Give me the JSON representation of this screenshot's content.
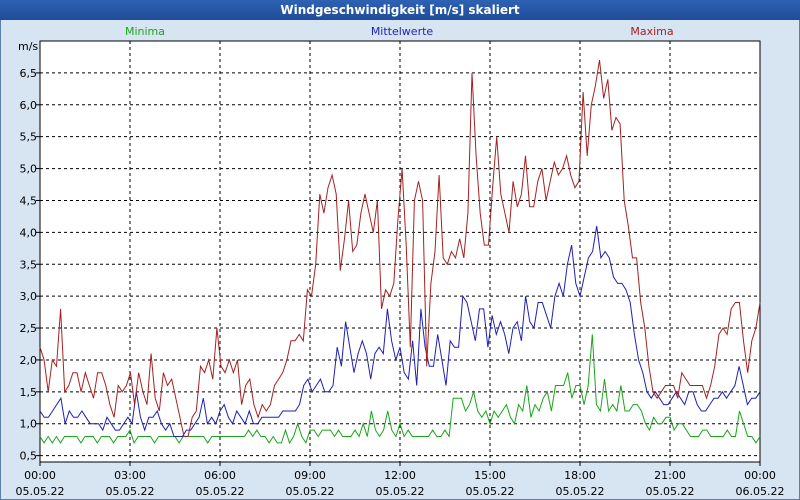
{
  "window": {
    "title": "Windgeschwindigkeit [m/s] skaliert"
  },
  "chart_data": {
    "type": "line",
    "title": "Windgeschwindigkeit [m/s] skaliert",
    "ylabel": "m/s",
    "ylim": [
      0.4,
      7.0
    ],
    "yticks": [
      0.5,
      1.0,
      1.5,
      2.0,
      2.5,
      3.0,
      3.5,
      4.0,
      4.5,
      5.0,
      5.5,
      6.0,
      6.5
    ],
    "ytick_labels": [
      "0,5",
      "1,0",
      "1,5",
      "2,0",
      "2,5",
      "3,0",
      "3,5",
      "4,0",
      "4,5",
      "5,0",
      "5,5",
      "6,0",
      "6,5"
    ],
    "xlim_hours": [
      0,
      24
    ],
    "xticks": [
      {
        "time": "00:00",
        "date": "05.05.22"
      },
      {
        "time": "03:00",
        "date": "05.05.22"
      },
      {
        "time": "06:00",
        "date": "05.05.22"
      },
      {
        "time": "09:00",
        "date": "05.05.22"
      },
      {
        "time": "12:00",
        "date": "05.05.22"
      },
      {
        "time": "15:00",
        "date": "05.05.22"
      },
      {
        "time": "18:00",
        "date": "05.05.22"
      },
      {
        "time": "21:00",
        "date": "05.05.22"
      },
      {
        "time": "00:00",
        "date": "06.05.22"
      }
    ],
    "grid": true,
    "legend_position": "top",
    "series": [
      {
        "name": "Minima",
        "color": "#1aa51a",
        "values": [
          0.8,
          0.7,
          0.8,
          0.7,
          0.8,
          0.7,
          0.8,
          0.8,
          0.8,
          0.8,
          0.7,
          0.8,
          0.8,
          0.8,
          0.7,
          0.8,
          0.8,
          0.8,
          0.7,
          0.8,
          0.8,
          0.8,
          0.9,
          0.7,
          0.8,
          0.8,
          0.8,
          0.8,
          0.7,
          0.8,
          0.8,
          0.8,
          0.8,
          0.8,
          0.7,
          0.8,
          0.8,
          0.8,
          0.8,
          0.8,
          0.8,
          0.7,
          0.8,
          0.8,
          0.8,
          0.8,
          0.8,
          0.8,
          0.8,
          0.8,
          0.8,
          0.9,
          0.8,
          0.9,
          0.8,
          0.8,
          0.7,
          0.8,
          0.7,
          0.7,
          0.9,
          0.7,
          0.8,
          1.0,
          0.8,
          0.7,
          0.9,
          0.9,
          0.8,
          0.9,
          0.9,
          0.9,
          0.8,
          0.9,
          0.8,
          0.8,
          0.8,
          0.9,
          0.8,
          1.0,
          0.8,
          1.2,
          0.9,
          0.8,
          0.9,
          1.2,
          0.9,
          0.8,
          1.0,
          0.8,
          0.9,
          0.8,
          0.8,
          0.8,
          0.8,
          0.8,
          0.9,
          0.8,
          0.8,
          0.9,
          0.8,
          1.4,
          1.4,
          1.4,
          1.2,
          1.3,
          1.5,
          1.2,
          1.1,
          1.2,
          1.0,
          1.2,
          1.1,
          1.2,
          1.3,
          1.1,
          1.0,
          1.3,
          1.2,
          1.6,
          1.1,
          1.3,
          1.2,
          1.4,
          1.5,
          1.2,
          1.6,
          1.6,
          1.6,
          1.8,
          1.4,
          1.6,
          1.6,
          1.3,
          1.6,
          2.4,
          1.3,
          1.2,
          1.7,
          1.2,
          1.3,
          1.2,
          1.6,
          1.2,
          1.2,
          1.3,
          1.3,
          1.2,
          1.0,
          0.9,
          1.1,
          1.0,
          1.0,
          1.1,
          1.1,
          0.9,
          1.0,
          1.0,
          0.9,
          0.8,
          0.8,
          0.8,
          0.9,
          0.9,
          0.8,
          0.8,
          0.8,
          0.8,
          0.9,
          0.8,
          0.8,
          1.2,
          1.0,
          0.8,
          0.8,
          0.7,
          0.8
        ]
      },
      {
        "name": "Mittelwerte",
        "color": "#1f1fb3",
        "values": [
          1.2,
          1.1,
          1.1,
          1.2,
          1.3,
          1.4,
          1.0,
          1.2,
          1.1,
          1.1,
          1.2,
          1.1,
          1.0,
          1.0,
          1.0,
          0.9,
          1.1,
          1.0,
          0.9,
          0.9,
          1.0,
          1.1,
          1.0,
          1.5,
          1.1,
          0.9,
          1.1,
          1.1,
          1.2,
          1.0,
          0.9,
          1.0,
          0.8,
          0.8,
          0.8,
          0.9,
          0.9,
          1.0,
          1.1,
          1.4,
          1.0,
          1.1,
          1.0,
          1.2,
          1.3,
          1.1,
          1.0,
          1.2,
          1.1,
          1.0,
          1.2,
          1.0,
          1.0,
          1.1,
          1.1,
          1.1,
          1.1,
          1.1,
          1.2,
          1.2,
          1.2,
          1.2,
          1.3,
          1.6,
          1.7,
          1.5,
          1.6,
          1.7,
          1.5,
          1.5,
          1.6,
          2.2,
          1.9,
          2.6,
          2.2,
          1.8,
          2.1,
          2.3,
          2.1,
          1.7,
          2.1,
          2.2,
          2.1,
          2.8,
          2.3,
          2.0,
          2.2,
          1.8,
          1.7,
          2.3,
          1.6,
          2.8,
          2.2,
          1.9,
          1.9,
          2.4,
          2.0,
          1.6,
          2.3,
          2.2,
          2.2,
          3.0,
          2.9,
          2.6,
          2.3,
          2.8,
          2.8,
          2.2,
          2.7,
          2.4,
          2.6,
          2.4,
          2.1,
          2.5,
          2.6,
          2.3,
          3.0,
          2.6,
          2.5,
          2.9,
          2.9,
          2.7,
          2.5,
          3.0,
          3.2,
          3.0,
          3.5,
          3.8,
          3.2,
          3.0,
          3.3,
          3.6,
          3.7,
          4.1,
          3.6,
          3.7,
          3.6,
          3.3,
          3.2,
          3.2,
          3.1,
          2.9,
          2.4,
          2.0,
          1.8,
          1.5,
          1.4,
          1.5,
          1.4,
          1.3,
          1.3,
          1.4,
          1.5,
          1.4,
          1.3,
          1.5,
          1.5,
          1.3,
          1.2,
          1.2,
          1.3,
          1.4,
          1.4,
          1.5,
          1.4,
          1.5,
          1.6,
          1.9,
          1.6,
          1.3,
          1.4,
          1.4,
          1.5
        ]
      },
      {
        "name": "Maxima",
        "color": "#a52121",
        "values": [
          2.2,
          2.0,
          1.5,
          2.0,
          1.9,
          2.8,
          1.5,
          1.6,
          1.8,
          1.8,
          1.5,
          1.8,
          1.6,
          1.4,
          1.8,
          1.8,
          1.6,
          1.3,
          1.1,
          1.6,
          1.5,
          1.6,
          1.8,
          1.3,
          1.8,
          1.5,
          1.3,
          2.1,
          1.4,
          1.2,
          1.8,
          1.6,
          1.7,
          1.4,
          1.1,
          0.8,
          0.8,
          1.1,
          1.2,
          1.9,
          1.8,
          2.0,
          1.7,
          2.5,
          1.9,
          1.8,
          2.0,
          1.8,
          2.0,
          1.3,
          1.6,
          1.7,
          1.3,
          1.1,
          1.3,
          1.2,
          1.3,
          1.6,
          1.7,
          1.8,
          2.0,
          2.3,
          2.3,
          2.4,
          2.3,
          3.1,
          3.0,
          3.5,
          4.6,
          4.3,
          4.7,
          4.9,
          4.6,
          3.4,
          3.9,
          4.5,
          3.7,
          3.8,
          4.3,
          4.6,
          4.3,
          4.0,
          4.5,
          2.8,
          3.1,
          3.0,
          3.2,
          4.2,
          5.0,
          3.8,
          2.2,
          4.5,
          4.8,
          4.5,
          1.9,
          3.2,
          3.7,
          4.9,
          3.6,
          3.5,
          3.7,
          3.6,
          3.9,
          3.6,
          4.3,
          6.5,
          5.2,
          4.3,
          3.8,
          3.8,
          4.7,
          5.5,
          4.6,
          4.3,
          4.0,
          4.8,
          4.4,
          4.6,
          5.2,
          4.4,
          4.4,
          4.8,
          5.0,
          4.5,
          4.8,
          5.1,
          4.9,
          5.0,
          5.2,
          4.9,
          4.7,
          4.8,
          6.2,
          5.2,
          6.0,
          6.3,
          6.7,
          6.1,
          6.4,
          5.6,
          5.8,
          5.7,
          4.5,
          4.1,
          3.6,
          3.6,
          2.9,
          2.5,
          1.9,
          1.5,
          1.4,
          1.5,
          1.6,
          1.6,
          1.6,
          1.4,
          1.8,
          1.7,
          1.6,
          1.6,
          1.6,
          1.6,
          1.4,
          1.6,
          1.9,
          2.4,
          2.5,
          2.4,
          2.8,
          2.9,
          2.9,
          2.3,
          1.8,
          2.3,
          2.5,
          2.9
        ]
      }
    ]
  }
}
